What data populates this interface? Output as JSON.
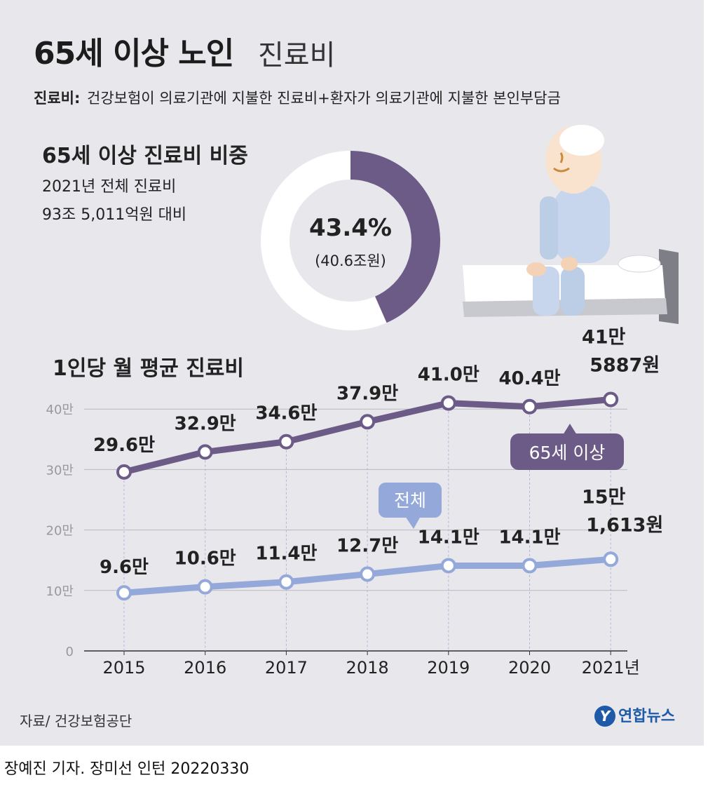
{
  "title": {
    "main": "65세 이상 노인",
    "sub": "진료비"
  },
  "definition": {
    "label": "진료비:",
    "text": "건강보험이 의료기관에 지불한 진료비+환자가 의료기관에 지불한 본인부담금"
  },
  "share": {
    "heading": "65세 이상 진료비 비중",
    "desc_line1": "2021년 전체 진료비",
    "desc_line2": "93조 5,011억원 대비",
    "percent_label": "43.4%",
    "amount_label": "(40.6조원)"
  },
  "line_heading": "1인당 월 평균 진료비",
  "source": "자료/ 건강보험공단",
  "byline": "장예진 기자. 장미선 인턴  20220330",
  "logo": "연합뉴스",
  "colors": {
    "elderly": "#6b5b86",
    "total": "#94a9d9",
    "panel": "#e8e8ec",
    "logo": "#1e5aa8"
  },
  "chart_data": [
    {
      "type": "pie",
      "categories": [
        "65세 이상"
      ],
      "values": [
        43.4
      ],
      "unit": "%"
    },
    {
      "type": "line",
      "categories": [
        "2015",
        "2016",
        "2017",
        "2018",
        "2019",
        "2020",
        "2021년"
      ],
      "series": [
        {
          "name": "65세 이상",
          "values": [
            29.6,
            32.9,
            34.6,
            37.9,
            41.0,
            40.4,
            41.5887
          ],
          "labels": [
            "29.6만",
            "32.9만",
            "34.6만",
            "37.9만",
            "41.0만",
            "40.4만",
            "41만|5887원"
          ]
        },
        {
          "name": "전체",
          "values": [
            9.6,
            10.6,
            11.4,
            12.7,
            14.1,
            14.1,
            15.1613
          ],
          "labels": [
            "9.6만",
            "10.6만",
            "11.4만",
            "12.7만",
            "14.1만",
            "14.1만",
            "15만|1,613원"
          ]
        }
      ],
      "yticks": [
        "0",
        "10만",
        "20만",
        "30만",
        "40만"
      ],
      "ylim": [
        0,
        40
      ],
      "grid": true
    }
  ]
}
